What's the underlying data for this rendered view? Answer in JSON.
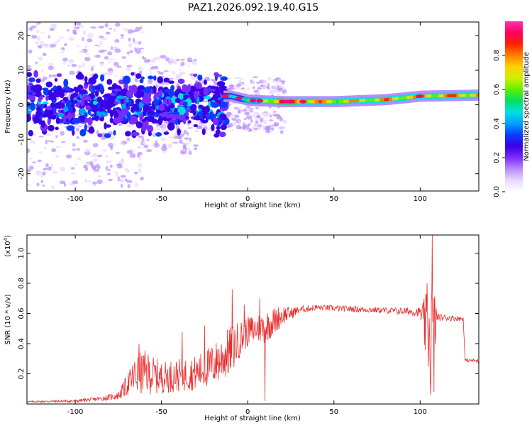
{
  "title": "PAZ1.2026.092.19.40.G15",
  "chart_data": [
    {
      "type": "heatmap",
      "title": "PAZ1.2026.092.19.40.G15",
      "xlabel": "Height of straight line (km)",
      "ylabel": "Frequency (Hz)",
      "xlim": [
        -128,
        134
      ],
      "ylim": [
        -25,
        24
      ],
      "xticks": [
        -100,
        -50,
        0,
        50,
        100
      ],
      "yticks": [
        -20,
        -10,
        0,
        10,
        20
      ],
      "colorbar": {
        "label": "Normalized spectral amplitude",
        "range": [
          0,
          1
        ],
        "ticks": [
          0.0,
          0.2,
          0.4,
          0.6,
          0.8
        ],
        "colormap": [
          "#ffffff",
          "#e8d8ff",
          "#b98cff",
          "#7a2cff",
          "#3a00e6",
          "#0a3cff",
          "#00a0ff",
          "#00e0e0",
          "#00e060",
          "#60f000",
          "#d0f000",
          "#ffd000",
          "#ff8000",
          "#ff2000",
          "#ff0060",
          "#ff33aa"
        ]
      },
      "ridge": [
        {
          "x": -10,
          "y": 2.5,
          "amp": 0.55
        },
        {
          "x": 0,
          "y": 1.3,
          "amp": 0.7
        },
        {
          "x": 20,
          "y": 0.9,
          "amp": 0.95
        },
        {
          "x": 50,
          "y": 0.9,
          "amp": 0.8
        },
        {
          "x": 80,
          "y": 1.5,
          "amp": 0.85
        },
        {
          "x": 100,
          "y": 2.5,
          "amp": 0.85
        },
        {
          "x": 134,
          "y": 2.8,
          "amp": 0.9
        }
      ]
    },
    {
      "type": "line",
      "xlabel": "Height of straight line (km)",
      "ylabel": "SNR (10 * v/v)",
      "yscale_label": "(x10",
      "yscale_exp": "4",
      "xlim": [
        -128,
        134
      ],
      "ylim": [
        0,
        1.12
      ],
      "xticks": [
        -100,
        -50,
        0,
        50,
        100
      ],
      "yticks": [
        0.2,
        0.4,
        0.6,
        0.8,
        1.0
      ],
      "series": [
        {
          "name": "SNR",
          "color": "#e83030",
          "envelope": {
            "x": [
              -128,
              -100,
              -85,
              -75,
              -70,
              -65,
              -60,
              -50,
              -40,
              -30,
              -20,
              -10,
              -5,
              0,
              5,
              10,
              15,
              20,
              25,
              30,
              40,
              60,
              80,
              100,
              104,
              107,
              110,
              125,
              126,
              134
            ],
            "low": [
              0.01,
              0.01,
              0.02,
              0.03,
              0.05,
              0.06,
              0.06,
              0.07,
              0.08,
              0.09,
              0.12,
              0.18,
              0.3,
              0.38,
              0.4,
              0.4,
              0.45,
              0.52,
              0.56,
              0.6,
              0.62,
              0.61,
              0.6,
              0.58,
              0.2,
              0.1,
              0.55,
              0.55,
              0.28,
              0.27
            ],
            "high": [
              0.02,
              0.03,
              0.05,
              0.08,
              0.2,
              0.32,
              0.36,
              0.28,
              0.3,
              0.32,
              0.4,
              0.52,
              0.55,
              0.58,
              0.6,
              0.62,
              0.64,
              0.66,
              0.64,
              0.65,
              0.66,
              0.65,
              0.64,
              0.64,
              0.75,
              0.9,
              0.6,
              0.58,
              0.3,
              0.3
            ]
          },
          "spikes": [
            {
              "x": -63,
              "y": 0.4
            },
            {
              "x": -38,
              "y": 0.48
            },
            {
              "x": -25,
              "y": 0.52
            },
            {
              "x": -9,
              "y": 0.76
            },
            {
              "x": -2,
              "y": 0.66
            },
            {
              "x": 7,
              "y": 0.7
            },
            {
              "x": 10,
              "y": 0.02
            },
            {
              "x": 104,
              "y": 0.8
            },
            {
              "x": 106,
              "y": 0.06
            },
            {
              "x": 107,
              "y": 1.12
            },
            {
              "x": 108,
              "y": 0.08
            }
          ]
        }
      ]
    }
  ]
}
